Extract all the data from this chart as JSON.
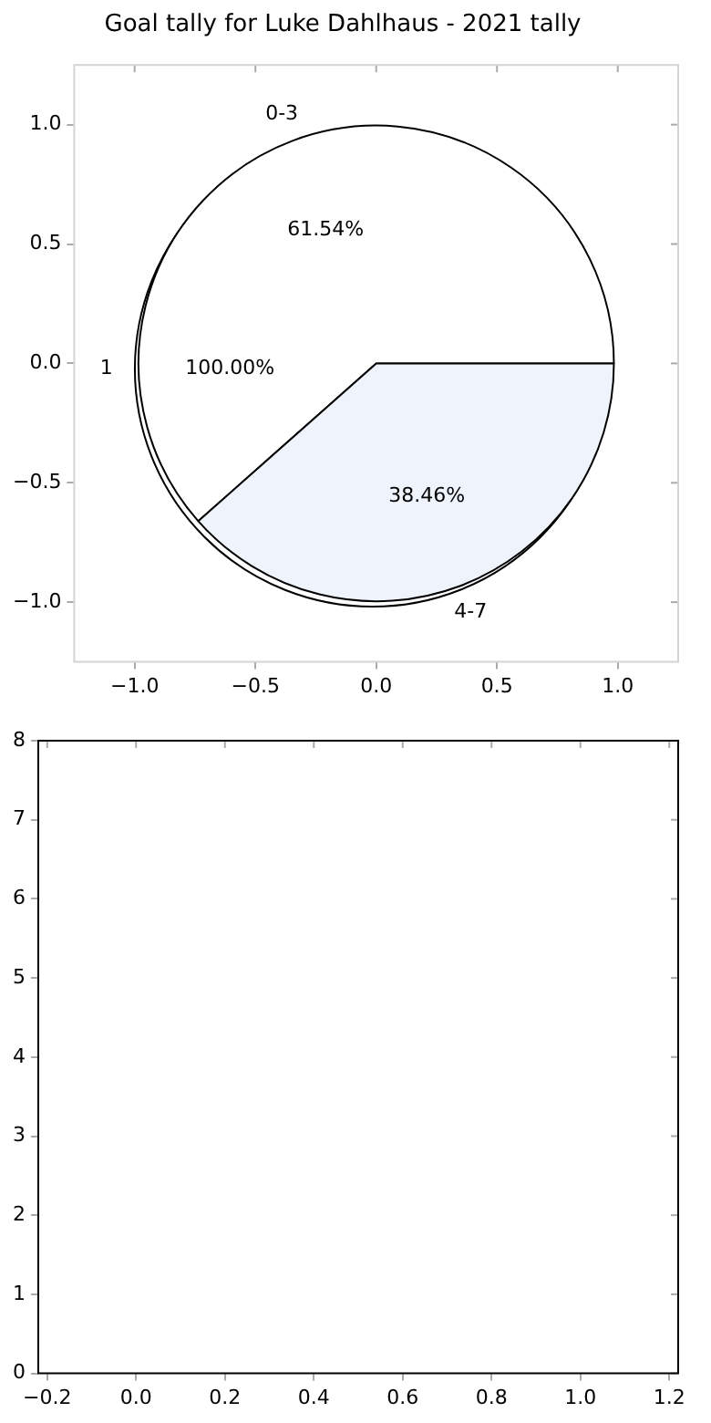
{
  "chart_data": [
    {
      "type": "scatter",
      "title": "Goal tally for Luke Dahlhaus - 2021 tally",
      "xlim": [
        -1.25,
        1.25
      ],
      "ylim": [
        -1.25,
        1.25
      ],
      "xticks": [
        {
          "value": -1,
          "label": "−1.0"
        },
        {
          "value": -0.5,
          "label": "−0.5"
        },
        {
          "value": 0,
          "label": "0.0"
        },
        {
          "value": 0.5,
          "label": "0.5"
        },
        {
          "value": 1,
          "label": "1.0"
        }
      ],
      "yticks": [
        {
          "value": -1,
          "label": "−1.0"
        },
        {
          "value": -0.5,
          "label": "−0.5"
        },
        {
          "value": 0,
          "label": "0.0"
        },
        {
          "value": 0.5,
          "label": "0.5"
        },
        {
          "value": 1,
          "label": "1.0"
        }
      ]
    },
    {
      "type": "pie",
      "categories": [
        "0-3",
        "4-7"
      ],
      "values": [
        61.54,
        38.46
      ],
      "value_labels": [
        "61.54%",
        "38.46%"
      ],
      "colors": [
        "#ffffff",
        "#eef3fc"
      ]
    },
    {
      "type": "pie",
      "categories": [
        "1"
      ],
      "values": [
        100
      ],
      "value_labels": [
        "100.00%"
      ],
      "colors": [
        "#ffffff"
      ]
    },
    {
      "type": "scatter",
      "xlim": [
        -0.22,
        1.22
      ],
      "ylim": [
        0,
        8
      ],
      "xticks": [
        {
          "value": -0.2,
          "label": "−0.2"
        },
        {
          "value": 0,
          "label": "0.0"
        },
        {
          "value": 0.2,
          "label": "0.2"
        },
        {
          "value": 0.4,
          "label": "0.4"
        },
        {
          "value": 0.6,
          "label": "0.6"
        },
        {
          "value": 0.8,
          "label": "0.8"
        },
        {
          "value": 1,
          "label": "1.0"
        },
        {
          "value": 1.2,
          "label": "1.2"
        }
      ],
      "yticks": [
        0,
        1,
        2,
        3,
        4,
        5,
        6,
        7,
        8
      ]
    }
  ]
}
